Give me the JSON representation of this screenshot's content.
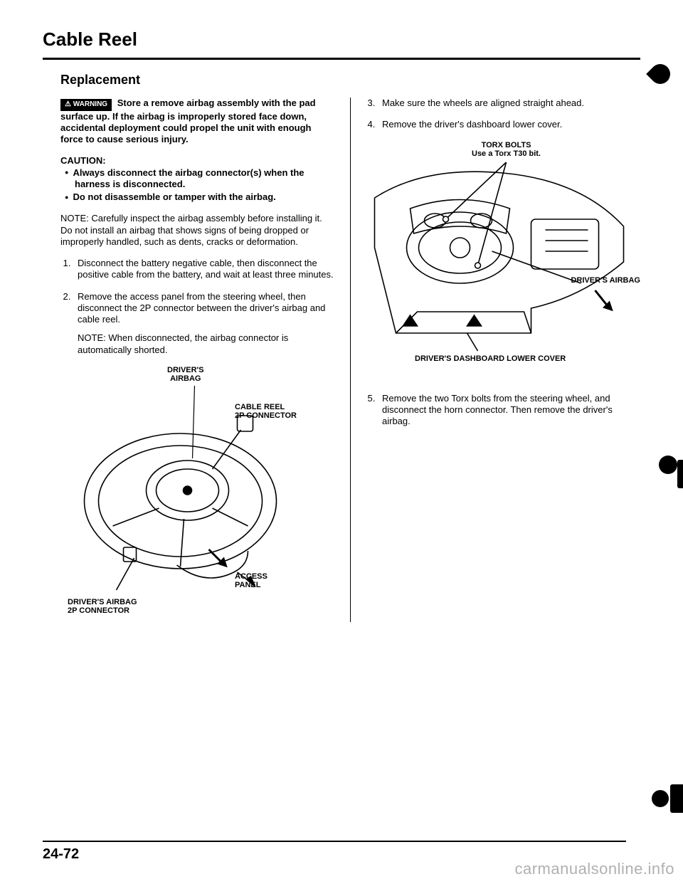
{
  "page_title": "Cable Reel",
  "section_title": "Replacement",
  "warning_badge": "⚠ WARNING",
  "warning_text": "Store a remove airbag assembly with the pad surface up. If the airbag is improperly stored face down, accidental deployment could propel the unit with enough force to cause serious injury.",
  "caution_heading": "CAUTION:",
  "cautions": [
    "Always disconnect the airbag connector(s) when the harness is disconnected.",
    "Do not disassemble or tamper with the airbag."
  ],
  "note_text": "NOTE: Carefully inspect the airbag assembly before installing it. Do not install an airbag that shows signs of being dropped or improperly handled, such as dents, cracks or deformation.",
  "left_steps": [
    {
      "n": "1",
      "text": "Disconnect the battery negative cable, then disconnect the positive cable from the battery, and wait at least three minutes."
    },
    {
      "n": "2",
      "text": "Remove the access panel from the steering wheel, then disconnect the 2P connector between the driver's airbag and cable reel.",
      "note": "NOTE: When disconnected, the airbag connector is automatically shorted."
    }
  ],
  "left_diagram": {
    "labels": {
      "drivers_airbag": "DRIVER'S\nAIRBAG",
      "cable_reel_conn": "CABLE REEL\n2P CONNECTOR",
      "access_panel": "ACCESS\nPANEL",
      "drivers_airbag_conn": "DRIVER'S AIRBAG\n2P CONNECTOR"
    }
  },
  "right_steps_a": [
    {
      "n": "3",
      "text": "Make sure the wheels are aligned straight ahead."
    },
    {
      "n": "4",
      "text": "Remove the driver's dashboard lower cover."
    }
  ],
  "right_diagram": {
    "labels": {
      "torx": "TORX BOLTS\nUse a Torx T30 bit.",
      "drivers_airbag": "DRIVER'S AIRBAG",
      "lower_cover": "DRIVER'S DASHBOARD LOWER COVER"
    }
  },
  "right_steps_b": [
    {
      "n": "5",
      "text": "Remove the two Torx bolts from the steering wheel, and disconnect the horn connector. Then remove the driver's airbag."
    }
  ],
  "page_number": "24-72",
  "watermark": "carmanualsonline.info"
}
